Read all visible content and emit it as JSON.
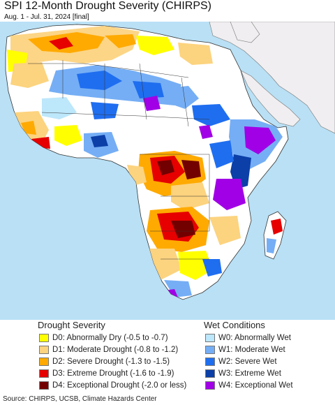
{
  "title": "SPI 12-Month Drought Severity (CHIRPS)",
  "subtitle": "Aug. 1 - Jul. 31, 2024 [final]",
  "legend": {
    "drought": {
      "heading": "Drought Severity",
      "items": [
        {
          "label": "D0: Abnormally Dry (-0.5 to -0.7)",
          "color": "#ffff00"
        },
        {
          "label": "D1: Moderate Drought (-0.8 to -1.2)",
          "color": "#fcd37f"
        },
        {
          "label": "D2: Severe Drought (-1.3 to -1.5)",
          "color": "#ffaa00"
        },
        {
          "label": "D3: Extreme Drought (-1.6 to -1.9)",
          "color": "#e60000"
        },
        {
          "label": "D4: Exceptional Drought (-2.0 or less)",
          "color": "#730000"
        }
      ]
    },
    "wet": {
      "heading": "Wet Conditions",
      "items": [
        {
          "label": "W0: Abnormally Wet",
          "color": "#bde7fb"
        },
        {
          "label": "W1: Moderate Wet",
          "color": "#75aef5"
        },
        {
          "label": "W2: Severe Wet",
          "color": "#1f6ef0"
        },
        {
          "label": "W3: Extreme Wet",
          "color": "#0c3fa7"
        },
        {
          "label": "W4: Exceptional Wet",
          "color": "#a100e6"
        }
      ]
    }
  },
  "map": {
    "ocean_color": "#b9e0f5",
    "land_neutral_color": "#ffffff",
    "outside_region_color": "#f0eef0"
  },
  "source": "Source: CHIRPS, UCSB, Climate Hazards Center"
}
